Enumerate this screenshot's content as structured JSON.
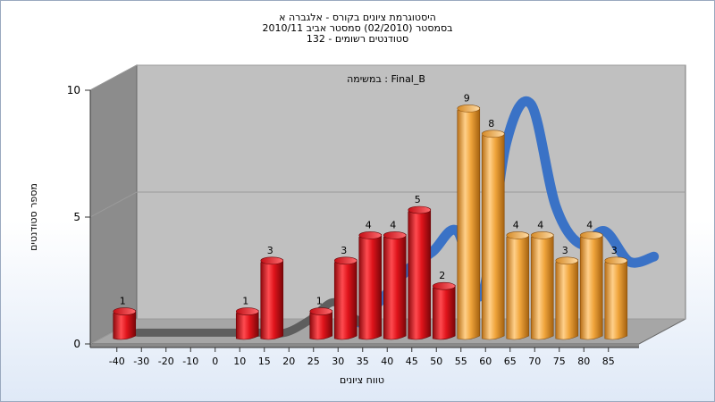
{
  "titles": {
    "line1": "היסטוגרמת ציונים בקורס - אלגברה א",
    "line2": "בסמסטר  (02/2010)  סמסטר אביב 2010/11",
    "line3": "סטודנטים רשומים - 132"
  },
  "colors": {
    "fail_bar": "#e0141b",
    "pass_bar": "#f0a53c",
    "curve": "#3a72c6",
    "curve_dark": "#5e5e5e",
    "plot_bg": "#c0c0c0",
    "side_wall": "#8c8c8c",
    "floor": "#a6a6a6"
  },
  "chart_data": {
    "type": "bar",
    "subtitle": "במשימה : Final_B",
    "xlabel": "טווח ציונים",
    "ylabel": "מספר סטודנטים",
    "ylim": [
      0,
      10
    ],
    "y_ticks": [
      0,
      5,
      10
    ],
    "x_tick_labels": [
      "-40",
      "-30",
      "-20",
      "-10",
      "0",
      "10",
      "15",
      "20",
      "25",
      "30",
      "35",
      "40",
      "45",
      "50",
      "55",
      "60",
      "65",
      "70",
      "75",
      "80",
      "85"
    ],
    "bars": [
      {
        "x": "-40",
        "value": 1,
        "label": "1",
        "group": "fail"
      },
      {
        "x": "10",
        "value": 1,
        "label": "1",
        "group": "fail"
      },
      {
        "x": "15",
        "value": 3,
        "label": "3",
        "group": "fail"
      },
      {
        "x": "25",
        "value": 1,
        "label": "1",
        "group": "fail"
      },
      {
        "x": "30",
        "value": 3,
        "label": "3",
        "group": "fail"
      },
      {
        "x": "35",
        "value": 4,
        "label": "4",
        "group": "fail"
      },
      {
        "x": "40",
        "value": 4,
        "label": "4",
        "group": "fail"
      },
      {
        "x": "45",
        "value": 5,
        "label": "5",
        "group": "fail"
      },
      {
        "x": "50",
        "value": 2,
        "label": "2",
        "group": "fail"
      },
      {
        "x": "55",
        "value": 9,
        "label": "9",
        "group": "pass"
      },
      {
        "x": "60",
        "value": 8,
        "label": "8",
        "group": "pass"
      },
      {
        "x": "65",
        "value": 4,
        "label": "4",
        "group": "pass"
      },
      {
        "x": "70",
        "value": 4,
        "label": "4",
        "group": "pass"
      },
      {
        "x": "75",
        "value": 3,
        "label": "3",
        "group": "pass"
      },
      {
        "x": "80",
        "value": 4,
        "label": "4",
        "group": "pass"
      },
      {
        "x": "85",
        "value": 3,
        "label": "3",
        "group": "pass"
      }
    ],
    "curve": {
      "x": [
        "-40",
        "-30",
        "-20",
        "-10",
        "0",
        "10",
        "15",
        "20",
        "25",
        "30",
        "35",
        "40",
        "45",
        "50",
        "55",
        "60",
        "65",
        "70",
        "75",
        "80",
        "85",
        "90"
      ],
      "values": [
        0,
        0,
        0,
        0,
        0,
        0,
        0,
        0.5,
        1.2,
        0.4,
        1.4,
        2.5,
        3.2,
        4.0,
        1.5,
        7.5,
        9.0,
        5.0,
        3.5,
        4.0,
        2.8,
        3.0
      ]
    },
    "grid": true,
    "legend": "none"
  }
}
